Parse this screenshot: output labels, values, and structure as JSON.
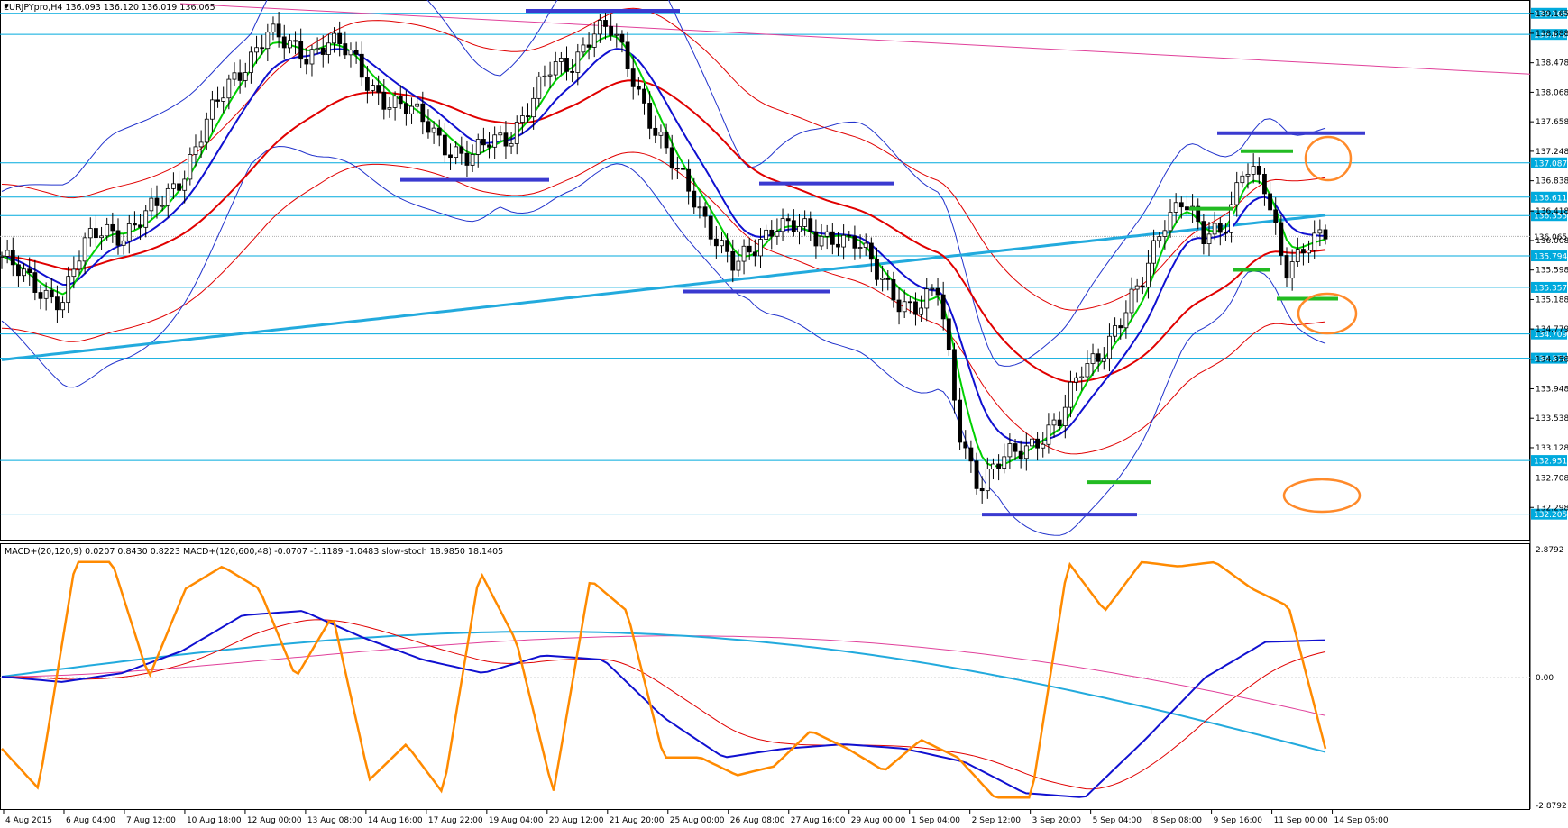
{
  "window": {
    "symbol_header": "EURJPYpro,H4  136.093 136.120 136.019 136.065",
    "indicator_header": "MACD+(20,120,9) 0.0207 0.8430 0.8223  MACD+(120,600,48) -0.0707 -1.1189 -1.0483  slow-stoch 18.9850 18.1405"
  },
  "colors": {
    "bull_candle": "#ffffff",
    "bear_candle": "#000000",
    "ma_fast": "#00d000",
    "ma_mid": "#1010d0",
    "ma_slow": "#e00000",
    "ma_long": "#22aadd",
    "bollinger": "#2233cc",
    "trendline": "#e0409a",
    "hline": "#00aadd",
    "zone_blue": "#3a3ad0",
    "zone_green": "#22bb22",
    "circle": "#ff8a2a",
    "stoch": "#ff8a00"
  },
  "chart_data": [
    {
      "type": "candlestick",
      "title": "EURJPYpro,H4",
      "ylim": [
        131.888,
        139.3
      ],
      "y_ticks": [
        "132.298",
        "132.708",
        "133.128",
        "133.538",
        "133.948",
        "134.358",
        "134.779",
        "135.188",
        "135.598",
        "136.008",
        "136.418",
        "136.838",
        "137.248",
        "137.658",
        "138.068",
        "138.478",
        "138.888",
        "139.165"
      ],
      "x_ticks": [
        "4 Aug 2015",
        "6 Aug 04:00",
        "7 Aug 12:00",
        "10 Aug 18:00",
        "12 Aug 00:00",
        "13 Aug 08:00",
        "14 Aug 16:00",
        "17 Aug 22:00",
        "19 Aug 04:00",
        "20 Aug 12:00",
        "21 Aug 20:00",
        "25 Aug 00:00",
        "26 Aug 08:00",
        "27 Aug 16:00",
        "29 Aug 00:00",
        "1 Sep 04:00",
        "2 Sep 12:00",
        "3 Sep 20:00",
        "5 Sep 04:00",
        "8 Sep 08:00",
        "9 Sep 16:00",
        "11 Sep 00:00",
        "14 Sep 06:00"
      ],
      "current_price": "136.065",
      "closes": [
        135.79,
        135.5,
        135.3,
        135.2,
        135.9,
        136.2,
        136.1,
        136.3,
        136.6,
        137.0,
        137.6,
        138.1,
        138.5,
        138.9,
        138.7,
        138.6,
        138.8,
        138.6,
        138.2,
        137.95,
        137.8,
        137.6,
        137.3,
        137.1,
        137.4,
        137.5,
        137.9,
        138.4,
        138.5,
        138.9,
        138.9,
        138.3,
        137.6,
        137.0,
        136.6,
        136.1,
        135.6,
        135.9,
        136.3,
        136.2,
        136.0,
        136.1,
        136.0,
        135.5,
        135.2,
        135.1,
        135.3,
        133.4,
        132.6,
        132.9,
        133.1,
        133.3,
        133.5,
        134.2,
        134.5,
        134.9,
        135.4,
        136.3,
        136.6,
        136.0,
        136.2,
        137.1,
        136.7,
        135.6,
        136.0,
        136.065
      ],
      "levels": [
        "139.165",
        "138.872",
        "137.087",
        "136.611",
        "136.355",
        "135.794",
        "135.357",
        "134.709",
        "134.372",
        "132.951",
        "132.205"
      ]
    },
    {
      "type": "line",
      "title": "MACD+(20,120,9) MACD+(120,600,48) slow-stoch",
      "ylim": [
        -2.8792,
        2.8792
      ],
      "y_ticks": [
        "2.8792",
        "0.00",
        "-2.8792"
      ],
      "values_macd_fast": [
        0.02,
        -0.1,
        0.1,
        0.6,
        1.4,
        1.5,
        0.9,
        0.4,
        0.1,
        0.5,
        0.4,
        -0.9,
        -1.8,
        -1.6,
        -1.5,
        -1.6,
        -1.9,
        -2.6,
        -2.7,
        -1.4,
        0.0,
        0.8,
        0.84
      ],
      "values_stoch": [
        -1.6,
        -2.5,
        2.6,
        2.6,
        0.0,
        2.0,
        2.5,
        2.0,
        0.0,
        1.4,
        -2.3,
        -1.5,
        -2.6,
        2.4,
        0.8,
        -2.6,
        2.2,
        1.5,
        -1.8,
        -1.8,
        -2.2,
        -2.0,
        -1.2,
        -1.6,
        -2.1,
        -1.4,
        -1.8,
        -2.7,
        -2.7,
        2.6,
        1.5,
        2.6,
        2.5,
        2.6,
        2.0,
        1.6,
        -1.6
      ]
    }
  ]
}
